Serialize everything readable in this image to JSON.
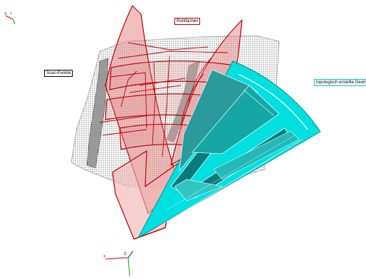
{
  "labels": {
    "scan_points": "Scan-Punkte",
    "raw_surfaces": "Rohflächen",
    "topological_geometry": "topologisch erstellte Geometrie"
  },
  "triad_top": {
    "x": "X",
    "y": "Y"
  },
  "triad_bottom": {
    "x": "X",
    "y": "Y",
    "z": "Z"
  },
  "colors": {
    "scan_points": "#8c8c8c",
    "raw_surfaces_line": "#c00000",
    "raw_surfaces_fill": "#e88a8a",
    "topological_fill": "#00e0e0",
    "topological_dark": "#0a7b7b",
    "axis_x": "#cc0000",
    "axis_y": "#00aa00",
    "axis_z": "#0000cc"
  }
}
